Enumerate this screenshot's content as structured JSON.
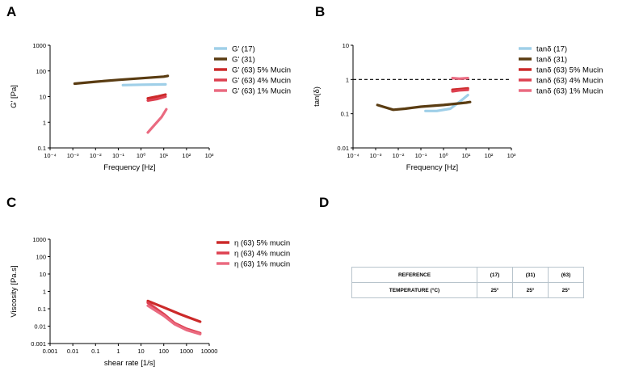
{
  "panels": {
    "A": "A",
    "B": "B",
    "C": "C",
    "D": "D"
  },
  "colors": {
    "light_blue": "#9fcfe8",
    "brown": "#5a3c12",
    "red5": "#cc2a2a",
    "red4": "#dd4050",
    "pink1": "#ea6a80"
  },
  "chart_data": [
    {
      "type": "line",
      "panel": "A",
      "xlabel": "Frequency [Hz]",
      "ylabel": "G' [Pa]",
      "xscale": "log",
      "yscale": "log",
      "xlim": [
        0.0001,
        1000
      ],
      "ylim": [
        0.1,
        1000
      ],
      "xticks": [
        "10⁻⁴",
        "10⁻³",
        "10⁻²",
        "10⁻¹",
        "10⁰",
        "10¹",
        "10²",
        "10³"
      ],
      "yticks": [
        "0.1",
        "1",
        "10",
        "100",
        "1000"
      ],
      "legend_position": "right",
      "series": [
        {
          "name": "G' (17)",
          "color": "#9fcfe8",
          "x": [
            0.16,
            1,
            12
          ],
          "y": [
            28,
            29,
            30
          ]
        },
        {
          "name": "G' (31)",
          "color": "#5a3c12",
          "x": [
            0.0012,
            0.01,
            0.1,
            1,
            10,
            15
          ],
          "y": [
            32,
            38,
            45,
            52,
            60,
            64
          ]
        },
        {
          "name": "G' (63) 5% Mucin",
          "color": "#cc2a2a",
          "x": [
            2,
            5,
            12
          ],
          "y": [
            8.5,
            10,
            12
          ]
        },
        {
          "name": "G' (63) 4% Mucin",
          "color": "#dd4050",
          "x": [
            2,
            5,
            12
          ],
          "y": [
            7,
            8,
            10
          ]
        },
        {
          "name": "G' (63) 1% Mucin",
          "color": "#ea6a80",
          "x": [
            2,
            4,
            8,
            13
          ],
          "y": [
            0.4,
            0.8,
            1.6,
            3.2
          ]
        }
      ]
    },
    {
      "type": "line",
      "panel": "B",
      "xlabel": "Frequency [Hz]",
      "ylabel": "tan(δ)",
      "xscale": "log",
      "yscale": "log",
      "xlim": [
        0.0001,
        1000
      ],
      "ylim": [
        0.01,
        10
      ],
      "xticks": [
        "10⁻⁴",
        "10⁻³",
        "10⁻²",
        "10⁻¹",
        "10⁰",
        "10¹",
        "10²",
        "10³"
      ],
      "yticks": [
        "0.01",
        "0.1",
        "1",
        "10"
      ],
      "reference_line": {
        "y": 1,
        "style": "dashed"
      },
      "legend_position": "right",
      "series": [
        {
          "name": "tanδ (17)",
          "color": "#9fcfe8",
          "x": [
            0.16,
            0.5,
            2,
            5,
            12
          ],
          "y": [
            0.12,
            0.12,
            0.14,
            0.22,
            0.35
          ]
        },
        {
          "name": "tanδ (31)",
          "color": "#5a3c12",
          "x": [
            0.0012,
            0.006,
            0.02,
            0.1,
            1,
            10,
            15
          ],
          "y": [
            0.18,
            0.13,
            0.14,
            0.16,
            0.18,
            0.21,
            0.22
          ]
        },
        {
          "name": "tanδ (63) 5% Mucin",
          "color": "#cc2a2a",
          "x": [
            2.5,
            5,
            12
          ],
          "y": [
            0.5,
            0.52,
            0.55
          ]
        },
        {
          "name": "tanδ (63) 4% Mucin",
          "color": "#dd4050",
          "x": [
            2.5,
            5,
            12
          ],
          "y": [
            0.45,
            0.48,
            0.5
          ]
        },
        {
          "name": "tanδ (63) 1% Mucin",
          "color": "#ea6a80",
          "x": [
            2.5,
            5,
            12
          ],
          "y": [
            1.1,
            1.05,
            1.1
          ]
        }
      ]
    },
    {
      "type": "line",
      "panel": "C",
      "xlabel": "shear rate [1/s]",
      "ylabel": "Viscosity [Pa.s]",
      "xscale": "log",
      "yscale": "log",
      "xlim": [
        0.001,
        10000
      ],
      "ylim": [
        0.001,
        1000
      ],
      "xticks": [
        "0.001",
        "0.01",
        "0.1",
        "1",
        "10",
        "100",
        "1000",
        "10000"
      ],
      "yticks": [
        "0.001",
        "0.01",
        "0.1",
        "1",
        "10",
        "100",
        "1000"
      ],
      "legend_position": "right",
      "series": [
        {
          "name": "η (63) 5% mucin",
          "color": "#cc2a2a",
          "x": [
            20,
            100,
            500,
            1000,
            4000
          ],
          "y": [
            0.28,
            0.12,
            0.05,
            0.035,
            0.018
          ]
        },
        {
          "name": "η (63) 4% mucin",
          "color": "#dd4050",
          "x": [
            20,
            100,
            300,
            1000,
            4000
          ],
          "y": [
            0.22,
            0.05,
            0.015,
            0.007,
            0.004
          ]
        },
        {
          "name": "η (63) 1% mucin",
          "color": "#ea6a80",
          "x": [
            20,
            100,
            300,
            1000,
            4000
          ],
          "y": [
            0.15,
            0.04,
            0.013,
            0.006,
            0.0035
          ]
        }
      ]
    }
  ],
  "table": {
    "rows": [
      {
        "label": "REFERENCE",
        "values": [
          "(17)",
          "(31)",
          "(63)"
        ]
      },
      {
        "label": "TEMPERATURE (°C)",
        "values": [
          "25°",
          "25°",
          "25°"
        ]
      }
    ]
  }
}
